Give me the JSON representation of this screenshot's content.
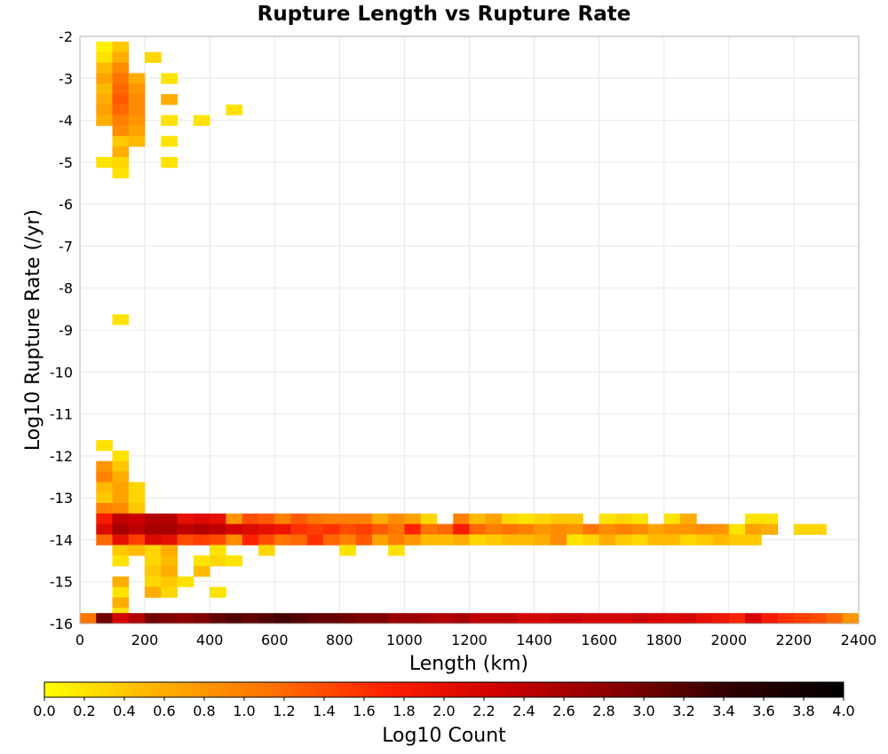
{
  "chart_data": {
    "type": "heatmap",
    "title": "Rupture Length vs Rupture Rate",
    "xlabel": "Length (km)",
    "ylabel": "Log10 Rupture Rate (/yr)",
    "xlim": [
      0,
      2400
    ],
    "ylim": [
      -16,
      -2
    ],
    "x_ticks": [
      "0",
      "200",
      "400",
      "600",
      "800",
      "1000",
      "1200",
      "1400",
      "1600",
      "1800",
      "2000",
      "2200",
      "2400"
    ],
    "y_ticks": [
      "-2",
      "-3",
      "-4",
      "-5",
      "-6",
      "-7",
      "-8",
      "-9",
      "-10",
      "-11",
      "-12",
      "-13",
      "-14",
      "-15",
      "-16"
    ],
    "grid": true,
    "bin_size": {
      "x_km": 50,
      "y_log10": 0.25
    },
    "colorbar": {
      "label": "Log10 Count",
      "min": 0.0,
      "max": 4.0,
      "ticks": [
        "0.0",
        "0.2",
        "0.4",
        "0.6",
        "0.8",
        "1.0",
        "1.2",
        "1.4",
        "1.6",
        "1.8",
        "2.0",
        "2.2",
        "2.4",
        "2.6",
        "2.8",
        "3.0",
        "3.2",
        "3.4",
        "3.6",
        "3.8",
        "4.0"
      ],
      "colormap": [
        "#ffff00",
        "#ffb000",
        "#ff7000",
        "#ff2000",
        "#cc0000",
        "#880000",
        "#300000",
        "#000000"
      ]
    },
    "cells_note": "each row: y bin center (log10 rate) then [x bin center km, log10 count] pairs",
    "rows": [
      {
        "y": -2.25,
        "cells": [
          [
            75,
            0.1
          ],
          [
            125,
            0.4
          ]
        ]
      },
      {
        "y": -2.5,
        "cells": [
          [
            75,
            0.2
          ],
          [
            125,
            0.6
          ],
          [
            225,
            0.3
          ]
        ]
      },
      {
        "y": -2.75,
        "cells": [
          [
            75,
            0.5
          ],
          [
            125,
            0.9
          ]
        ]
      },
      {
        "y": -3.0,
        "cells": [
          [
            75,
            0.7
          ],
          [
            125,
            1.1
          ],
          [
            175,
            0.6
          ],
          [
            275,
            0.2
          ]
        ]
      },
      {
        "y": -3.25,
        "cells": [
          [
            75,
            0.5
          ],
          [
            125,
            1.2
          ],
          [
            175,
            0.8
          ]
        ]
      },
      {
        "y": -3.5,
        "cells": [
          [
            75,
            0.6
          ],
          [
            125,
            1.3
          ],
          [
            175,
            0.9
          ],
          [
            275,
            0.6
          ]
        ]
      },
      {
        "y": -3.75,
        "cells": [
          [
            75,
            0.7
          ],
          [
            125,
            1.2
          ],
          [
            175,
            0.9
          ],
          [
            475,
            0.2
          ]
        ]
      },
      {
        "y": -4.0,
        "cells": [
          [
            75,
            0.6
          ],
          [
            125,
            1.0
          ],
          [
            175,
            0.8
          ],
          [
            275,
            0.2
          ],
          [
            375,
            0.2
          ]
        ]
      },
      {
        "y": -4.25,
        "cells": [
          [
            125,
            0.9
          ],
          [
            175,
            0.7
          ]
        ]
      },
      {
        "y": -4.5,
        "cells": [
          [
            125,
            0.4
          ],
          [
            175,
            0.5
          ],
          [
            275,
            0.2
          ]
        ]
      },
      {
        "y": -4.75,
        "cells": [
          [
            125,
            0.6
          ]
        ]
      },
      {
        "y": -5.0,
        "cells": [
          [
            75,
            0.2
          ],
          [
            125,
            0.3
          ],
          [
            275,
            0.2
          ]
        ]
      },
      {
        "y": -5.25,
        "cells": [
          [
            125,
            0.2
          ]
        ]
      },
      {
        "y": -8.75,
        "cells": [
          [
            125,
            0.2
          ]
        ]
      },
      {
        "y": -11.75,
        "cells": [
          [
            75,
            0.2
          ]
        ]
      },
      {
        "y": -12.0,
        "cells": [
          [
            125,
            0.2
          ]
        ]
      },
      {
        "y": -12.25,
        "cells": [
          [
            75,
            0.8
          ],
          [
            125,
            0.4
          ]
        ]
      },
      {
        "y": -12.5,
        "cells": [
          [
            75,
            1.0
          ],
          [
            125,
            0.6
          ]
        ]
      },
      {
        "y": -12.75,
        "cells": [
          [
            75,
            0.5
          ],
          [
            125,
            0.7
          ],
          [
            175,
            0.3
          ]
        ]
      },
      {
        "y": -13.0,
        "cells": [
          [
            75,
            0.4
          ],
          [
            125,
            0.7
          ],
          [
            175,
            0.3
          ]
        ]
      },
      {
        "y": -13.25,
        "cells": [
          [
            75,
            1.0
          ],
          [
            125,
            0.9
          ],
          [
            175,
            0.4
          ]
        ]
      },
      {
        "y": -13.5,
        "cells": [
          [
            75,
            1.8
          ],
          [
            125,
            2.4
          ],
          [
            175,
            2.3
          ],
          [
            225,
            2.5
          ],
          [
            275,
            2.5
          ],
          [
            325,
            2.0
          ],
          [
            375,
            2.1
          ],
          [
            425,
            2.0
          ],
          [
            475,
            0.8
          ],
          [
            525,
            1.4
          ],
          [
            575,
            1.3
          ],
          [
            625,
            1.0
          ],
          [
            675,
            1.3
          ],
          [
            725,
            1.1
          ],
          [
            775,
            1.0
          ],
          [
            825,
            1.0
          ],
          [
            875,
            1.0
          ],
          [
            925,
            0.6
          ],
          [
            975,
            0.9
          ],
          [
            1025,
            0.7
          ],
          [
            1075,
            0.3
          ],
          [
            1175,
            1.0
          ],
          [
            1225,
            0.5
          ],
          [
            1275,
            0.7
          ],
          [
            1325,
            0.3
          ],
          [
            1375,
            0.2
          ],
          [
            1425,
            0.3
          ],
          [
            1475,
            0.4
          ],
          [
            1525,
            0.4
          ],
          [
            1625,
            0.2
          ],
          [
            1675,
            0.3
          ],
          [
            1725,
            0.2
          ],
          [
            1825,
            0.2
          ],
          [
            1875,
            0.6
          ],
          [
            2075,
            0.2
          ],
          [
            2125,
            0.2
          ]
        ]
      },
      {
        "y": -13.75,
        "cells": [
          [
            75,
            2.1
          ],
          [
            125,
            2.6
          ],
          [
            175,
            2.4
          ],
          [
            225,
            2.6
          ],
          [
            275,
            2.6
          ],
          [
            325,
            2.4
          ],
          [
            375,
            2.5
          ],
          [
            425,
            2.4
          ],
          [
            475,
            2.2
          ],
          [
            525,
            2.1
          ],
          [
            575,
            2.0
          ],
          [
            625,
            1.9
          ],
          [
            675,
            1.6
          ],
          [
            725,
            1.5
          ],
          [
            775,
            1.6
          ],
          [
            825,
            1.4
          ],
          [
            875,
            1.5
          ],
          [
            925,
            1.3
          ],
          [
            975,
            1.1
          ],
          [
            1025,
            1.7
          ],
          [
            1075,
            1.1
          ],
          [
            1125,
            1.2
          ],
          [
            1175,
            1.8
          ],
          [
            1225,
            1.2
          ],
          [
            1275,
            1.0
          ],
          [
            1325,
            1.1
          ],
          [
            1375,
            1.0
          ],
          [
            1425,
            0.8
          ],
          [
            1475,
            0.9
          ],
          [
            1525,
            0.8
          ],
          [
            1575,
            1.1
          ],
          [
            1625,
            0.9
          ],
          [
            1675,
            1.0
          ],
          [
            1725,
            0.9
          ],
          [
            1775,
            0.7
          ],
          [
            1825,
            0.8
          ],
          [
            1875,
            0.8
          ],
          [
            1925,
            0.9
          ],
          [
            1975,
            0.8
          ],
          [
            2025,
            0.2
          ],
          [
            2075,
            0.7
          ],
          [
            2125,
            0.6
          ],
          [
            2225,
            0.3
          ],
          [
            2275,
            0.3
          ]
        ]
      },
      {
        "y": -14.0,
        "cells": [
          [
            75,
            1.2
          ],
          [
            125,
            2.0
          ],
          [
            175,
            1.5
          ],
          [
            225,
            2.1
          ],
          [
            275,
            2.0
          ],
          [
            325,
            1.4
          ],
          [
            375,
            1.5
          ],
          [
            425,
            1.4
          ],
          [
            475,
            0.9
          ],
          [
            525,
            1.7
          ],
          [
            575,
            1.4
          ],
          [
            625,
            1.1
          ],
          [
            675,
            1.2
          ],
          [
            725,
            1.6
          ],
          [
            775,
            1.2
          ],
          [
            825,
            1.0
          ],
          [
            875,
            1.3
          ],
          [
            925,
            0.7
          ],
          [
            975,
            1.0
          ],
          [
            1025,
            0.8
          ],
          [
            1075,
            0.5
          ],
          [
            1125,
            0.5
          ],
          [
            1175,
            0.6
          ],
          [
            1225,
            0.3
          ],
          [
            1275,
            0.4
          ],
          [
            1325,
            0.5
          ],
          [
            1375,
            0.5
          ],
          [
            1425,
            0.6
          ],
          [
            1475,
            0.9
          ],
          [
            1525,
            0.2
          ],
          [
            1575,
            0.3
          ],
          [
            1625,
            0.6
          ],
          [
            1675,
            0.4
          ],
          [
            1725,
            0.3
          ],
          [
            1775,
            0.5
          ],
          [
            1825,
            0.5
          ],
          [
            1875,
            0.3
          ],
          [
            1925,
            0.4
          ],
          [
            1975,
            0.5
          ],
          [
            2025,
            0.4
          ],
          [
            2075,
            0.4
          ]
        ]
      },
      {
        "y": -14.25,
        "cells": [
          [
            125,
            0.4
          ],
          [
            175,
            0.5
          ],
          [
            225,
            0.3
          ],
          [
            275,
            0.6
          ],
          [
            425,
            0.2
          ],
          [
            575,
            0.3
          ],
          [
            825,
            0.2
          ],
          [
            975,
            0.2
          ]
        ]
      },
      {
        "y": -14.5,
        "cells": [
          [
            125,
            0.2
          ],
          [
            225,
            0.3
          ],
          [
            275,
            0.5
          ],
          [
            375,
            0.2
          ],
          [
            425,
            0.3
          ],
          [
            475,
            0.2
          ]
        ]
      },
      {
        "y": -14.75,
        "cells": [
          [
            225,
            0.4
          ],
          [
            275,
            0.6
          ],
          [
            375,
            0.5
          ]
        ]
      },
      {
        "y": -15.0,
        "cells": [
          [
            125,
            0.6
          ],
          [
            225,
            0.3
          ],
          [
            275,
            0.4
          ],
          [
            325,
            0.2
          ]
        ]
      },
      {
        "y": -15.25,
        "cells": [
          [
            125,
            0.2
          ],
          [
            225,
            0.6
          ],
          [
            275,
            0.3
          ],
          [
            425,
            0.2
          ]
        ]
      },
      {
        "y": -15.5,
        "cells": [
          [
            125,
            0.6
          ]
        ]
      },
      {
        "y": -15.75,
        "cells": [
          [
            125,
            0.2
          ]
        ]
      },
      {
        "y": -15.875,
        "cells": [
          [
            25,
            1.1
          ],
          [
            75,
            3.0
          ],
          [
            125,
            2.2
          ],
          [
            175,
            2.5
          ],
          [
            225,
            3.0
          ],
          [
            275,
            2.9
          ],
          [
            325,
            2.8
          ],
          [
            375,
            2.9
          ],
          [
            425,
            3.1
          ],
          [
            475,
            3.2
          ],
          [
            525,
            3.1
          ],
          [
            575,
            3.2
          ],
          [
            625,
            3.3
          ],
          [
            675,
            3.2
          ],
          [
            725,
            3.1
          ],
          [
            775,
            3.1
          ],
          [
            825,
            3.0
          ],
          [
            875,
            2.9
          ],
          [
            925,
            2.9
          ],
          [
            975,
            2.7
          ],
          [
            1025,
            2.7
          ],
          [
            1075,
            2.6
          ],
          [
            1125,
            2.5
          ],
          [
            1175,
            2.6
          ],
          [
            1225,
            2.4
          ],
          [
            1275,
            2.4
          ],
          [
            1325,
            2.4
          ],
          [
            1375,
            2.2
          ],
          [
            1425,
            2.2
          ],
          [
            1475,
            2.3
          ],
          [
            1525,
            2.3
          ],
          [
            1575,
            2.2
          ],
          [
            1625,
            2.2
          ],
          [
            1675,
            2.2
          ],
          [
            1725,
            2.3
          ],
          [
            1775,
            2.2
          ],
          [
            1825,
            2.1
          ],
          [
            1875,
            2.2
          ],
          [
            1925,
            2.0
          ],
          [
            1975,
            1.9
          ],
          [
            2025,
            1.7
          ],
          [
            2075,
            2.2
          ],
          [
            2125,
            1.8
          ],
          [
            2175,
            1.6
          ],
          [
            2225,
            1.5
          ],
          [
            2275,
            1.4
          ],
          [
            2325,
            1.2
          ],
          [
            2375,
            0.8
          ]
        ]
      }
    ]
  }
}
